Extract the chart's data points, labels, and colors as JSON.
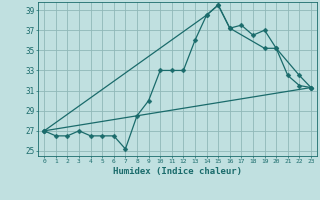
{
  "title": "",
  "xlabel": "Humidex (Indice chaleur)",
  "ylabel": "",
  "bg_color": "#c0e0e0",
  "grid_color": "#90b8b8",
  "line_color": "#1a6b6b",
  "xlim": [
    -0.5,
    23.5
  ],
  "ylim": [
    24.5,
    39.8
  ],
  "xticks": [
    0,
    1,
    2,
    3,
    4,
    5,
    6,
    7,
    8,
    9,
    10,
    11,
    12,
    13,
    14,
    15,
    16,
    17,
    18,
    19,
    20,
    21,
    22,
    23
  ],
  "yticks": [
    25,
    27,
    29,
    31,
    33,
    35,
    37,
    39
  ],
  "line1_x": [
    0,
    1,
    2,
    3,
    4,
    5,
    6,
    7,
    8,
    9,
    10,
    11,
    12,
    13,
    14,
    15,
    16,
    17,
    18,
    19,
    20,
    21,
    22,
    23
  ],
  "line1_y": [
    27,
    26.5,
    26.5,
    27,
    26.5,
    26.5,
    26.5,
    25.2,
    28.5,
    30,
    33,
    33,
    33,
    36,
    38.5,
    39.5,
    37.2,
    37.5,
    36.5,
    37,
    35.2,
    32.5,
    31.5,
    31.3
  ],
  "line2_x": [
    0,
    14,
    15,
    16,
    19,
    20,
    22,
    23
  ],
  "line2_y": [
    27,
    38.5,
    39.5,
    37.2,
    35.2,
    35.2,
    32.5,
    31.3
  ],
  "line3_x": [
    0,
    23
  ],
  "line3_y": [
    27,
    31.3
  ],
  "markersize": 2.5,
  "linewidth": 0.9
}
